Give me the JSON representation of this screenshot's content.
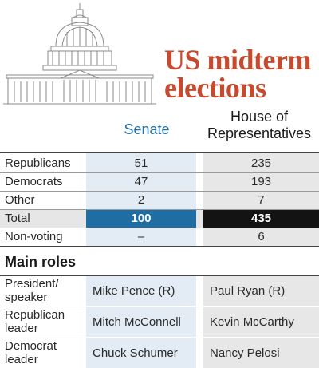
{
  "title": "US midterm elections",
  "columns": {
    "senate": "Senate",
    "house": "House of Representatives"
  },
  "rows": [
    {
      "label": "Republicans",
      "senate": "51",
      "house": "235"
    },
    {
      "label": "Democrats",
      "senate": "47",
      "house": "193"
    },
    {
      "label": "Other",
      "senate": "2",
      "house": "7"
    },
    {
      "label": "Total",
      "senate": "100",
      "house": "435"
    },
    {
      "label": "Non-voting",
      "senate": "–",
      "house": "6"
    }
  ],
  "roles": {
    "title": "Main roles",
    "items": [
      {
        "label": "President/ speaker",
        "senate": "Mike Pence (R)",
        "house": "Paul Ryan (R)"
      },
      {
        "label": "Republican leader",
        "senate": "Mitch McConnell",
        "house": "Kevin McCarthy"
      },
      {
        "label": "Democrat leader",
        "senate": "Chuck Schumer",
        "house": "Nancy Pelosi"
      }
    ]
  },
  "colors": {
    "title": "#c54a2f",
    "senate_accent": "#1f6da3",
    "house_accent": "#131313"
  },
  "icons": {
    "header": "capitol-building-icon"
  }
}
